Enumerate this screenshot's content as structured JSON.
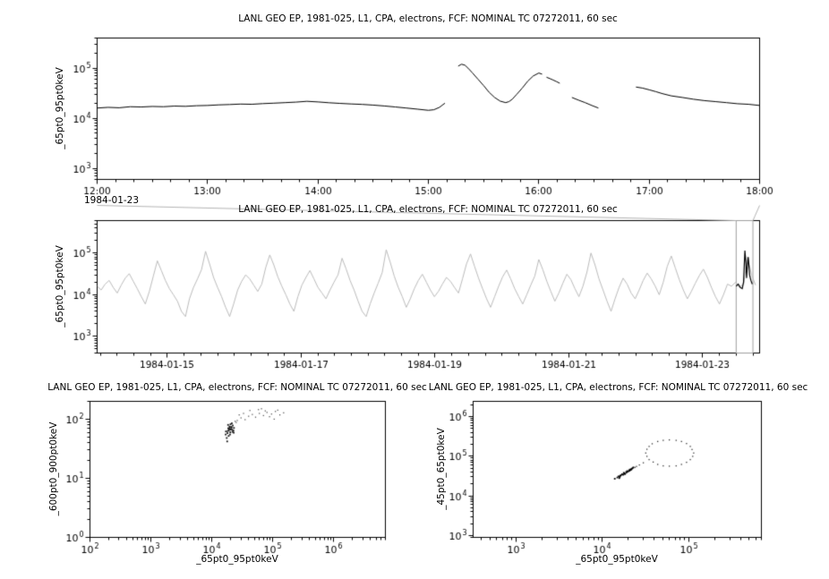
{
  "connector": {
    "color": "#b3b3b3"
  },
  "chart_data": [
    {
      "id": "top-timeseries",
      "type": "line",
      "title": "LANL GEO EP, 1981-025, L1, CPA, electrons, FCF: NOMINAL TC 07272011, 60 sec",
      "ylabel": "_65pt0_95pt0keV",
      "xlabel": "",
      "x_context_label": "1984-01-23",
      "x_axis": {
        "log": false,
        "min": 12,
        "max": 18,
        "minor_step": 0.166666,
        "major": [
          {
            "v": 12,
            "label": "12:00"
          },
          {
            "v": 13,
            "label": "13:00"
          },
          {
            "v": 14,
            "label": "14:00"
          },
          {
            "v": 15,
            "label": "15:00"
          },
          {
            "v": 16,
            "label": "16:00"
          },
          {
            "v": 17,
            "label": "17:00"
          },
          {
            "v": 18,
            "label": "18:00"
          }
        ]
      },
      "y_axis": {
        "log": true,
        "min": 600,
        "max": 400000,
        "majors": [
          1000,
          10000,
          100000
        ]
      },
      "series": [
        {
          "name": "_65pt0_95pt0keV",
          "type": "line",
          "color": "#000000",
          "width": 1,
          "segments": [
            {
              "x": [
                12.0,
                12.1,
                12.2,
                12.3,
                12.4,
                12.5,
                12.6,
                12.7,
                12.8,
                12.9,
                13.0,
                13.1,
                13.2,
                13.3,
                13.4,
                13.5,
                13.6,
                13.7,
                13.8,
                13.9,
                14.0,
                14.1,
                14.2,
                14.3,
                14.4,
                14.5,
                14.6,
                14.7,
                14.8,
                14.9,
                15.0,
                15.05,
                15.1,
                15.15
              ],
              "y": [
                16000,
                16500,
                16200,
                17000,
                16800,
                17200,
                17000,
                17500,
                17300,
                17800,
                18000,
                18500,
                18800,
                19200,
                19000,
                19600,
                20000,
                20500,
                21000,
                21800,
                21200,
                20400,
                19800,
                19300,
                18900,
                18300,
                17600,
                16800,
                16000,
                15200,
                14400,
                14800,
                16500,
                20000
              ]
            },
            {
              "x": [
                15.27,
                15.3,
                15.33,
                15.36,
                15.4,
                15.45,
                15.5,
                15.55,
                15.6,
                15.65,
                15.7,
                15.73,
                15.76,
                15.8,
                15.85,
                15.9,
                15.95,
                16.0,
                16.03
              ],
              "y": [
                110000,
                120000,
                115000,
                100000,
                80000,
                60000,
                45000,
                33000,
                26000,
                22000,
                20500,
                21500,
                24000,
                30000,
                40000,
                55000,
                70000,
                80000,
                76000
              ]
            },
            {
              "x": [
                16.07,
                16.1,
                16.13,
                16.16,
                16.19
              ],
              "y": [
                66000,
                62000,
                58000,
                54000,
                50000
              ]
            },
            {
              "x": [
                16.3,
                16.36,
                16.42,
                16.48,
                16.54
              ],
              "y": [
                26000,
                23000,
                20500,
                18000,
                16000
              ]
            },
            {
              "x": [
                16.88,
                16.94,
                17.0,
                17.06,
                17.12,
                17.2,
                17.3,
                17.4,
                17.5,
                17.6,
                17.7,
                17.8,
                17.9,
                18.0
              ],
              "y": [
                42000,
                40000,
                37000,
                34000,
                31000,
                28000,
                26000,
                24000,
                22500,
                21500,
                20500,
                19500,
                19000,
                18000
              ]
            }
          ]
        }
      ]
    },
    {
      "id": "context-timeseries",
      "type": "line",
      "title": "LANL GEO EP, 1981-025, L1, CPA, electrons, FCF: NOMINAL TC 07272011, 60 sec",
      "ylabel": "_65pt0_95pt0keV",
      "xlabel": "",
      "x_axis": {
        "log": false,
        "min": 13.95,
        "max": 23.85,
        "minor_step": 0.25,
        "major": [
          {
            "v": 15,
            "label": "1984-01-15"
          },
          {
            "v": 17,
            "label": "1984-01-17"
          },
          {
            "v": 19,
            "label": "1984-01-19"
          },
          {
            "v": 21,
            "label": "1984-01-21"
          },
          {
            "v": 23,
            "label": "1984-01-23"
          }
        ]
      },
      "y_axis": {
        "log": true,
        "min": 400,
        "max": 600000,
        "majors": [
          1000,
          10000,
          100000
        ]
      },
      "highlight": {
        "x0": 23.5,
        "x1": 23.75,
        "color": "#9e9e9e"
      },
      "series": [
        {
          "name": "_65pt0_95pt0keV (context)",
          "type": "line",
          "color": "#bbbbbb",
          "width": 1,
          "x_start": 13.95,
          "x_step": 0.06,
          "y_scale": 1000,
          "y": [
            16,
            13,
            18,
            22,
            15,
            11,
            17,
            25,
            32,
            21,
            14,
            9,
            6,
            12,
            28,
            65,
            38,
            22,
            14,
            10,
            7,
            4,
            3,
            8,
            15,
            24,
            40,
            110,
            55,
            26,
            15,
            9,
            5,
            3,
            6,
            13,
            21,
            30,
            24,
            17,
            12,
            18,
            45,
            90,
            52,
            27,
            16,
            10,
            6,
            4,
            9,
            17,
            26,
            38,
            24,
            15,
            11,
            8,
            13,
            20,
            30,
            75,
            42,
            22,
            13,
            7,
            4,
            3,
            6,
            11,
            19,
            34,
            120,
            60,
            28,
            15,
            9,
            5,
            8,
            14,
            22,
            31,
            20,
            13,
            9,
            12,
            18,
            26,
            21,
            15,
            11,
            24,
            55,
            95,
            48,
            25,
            14,
            8,
            5,
            9,
            16,
            27,
            39,
            24,
            14,
            9,
            6,
            10,
            17,
            28,
            70,
            40,
            21,
            12,
            7,
            11,
            19,
            31,
            23,
            14,
            9,
            16,
            35,
            100,
            52,
            24,
            13,
            7,
            4,
            8,
            15,
            25,
            18,
            11,
            8,
            13,
            22,
            33,
            24,
            16,
            10,
            20,
            48,
            85,
            44,
            23,
            13,
            8,
            12,
            19,
            29,
            41,
            26,
            15,
            9,
            6,
            10,
            18,
            16,
            20,
            15,
            18,
            80,
            30,
            17
          ]
        },
        {
          "name": "highlighted interval",
          "type": "line",
          "color": "#000000",
          "width": 1.2,
          "y_scale": 1000,
          "x": [
            23.5,
            23.53,
            23.56,
            23.59,
            23.61,
            23.63,
            23.645,
            23.655,
            23.665,
            23.68,
            23.7,
            23.72,
            23.74
          ],
          "y": [
            16,
            18,
            15,
            14,
            20,
            115,
            60,
            25,
            45,
            80,
            30,
            22,
            18
          ]
        }
      ]
    },
    {
      "id": "scatter-600-900",
      "type": "scatter",
      "title": "LANL GEO EP, 1981-025, L1, CPA, electrons, FCF: NOMINAL TC 07272011, 60 sec",
      "xlabel": "_65pt0_95pt0keV",
      "ylabel": "_600pt0_900pt0keV",
      "x_axis": {
        "log": true,
        "min": 100,
        "max": 7000000,
        "majors": [
          100,
          1000,
          10000,
          100000,
          1000000
        ]
      },
      "y_axis": {
        "log": true,
        "min": 1,
        "max": 200,
        "majors": [
          1,
          10,
          100
        ]
      },
      "series": [
        {
          "name": "dense cluster",
          "type": "scatter",
          "color": "#111111",
          "size": 1.8,
          "points": [
            [
              17000,
              62
            ],
            [
              18000,
              58
            ],
            [
              18500,
              70
            ],
            [
              19000,
              65
            ],
            [
              19500,
              75
            ],
            [
              20000,
              60
            ],
            [
              20500,
              68
            ],
            [
              21000,
              72
            ],
            [
              21500,
              66
            ],
            [
              22000,
              78
            ],
            [
              22500,
              64
            ],
            [
              23000,
              71
            ],
            [
              19800,
              55
            ],
            [
              20200,
              82
            ],
            [
              18200,
              63
            ],
            [
              19200,
              69
            ],
            [
              20800,
              74
            ],
            [
              21800,
              61
            ],
            [
              17500,
              48
            ],
            [
              18800,
              52
            ],
            [
              21200,
              85
            ],
            [
              22800,
              59
            ],
            [
              20100,
              67
            ],
            [
              19600,
              73
            ],
            [
              18400,
              80
            ],
            [
              17800,
              42
            ],
            [
              16800,
              55
            ]
          ]
        },
        {
          "name": "sparse points",
          "type": "scatter",
          "color": "#444444",
          "size": 1.2,
          "points": [
            [
              26000,
              95
            ],
            [
              30000,
              105
            ],
            [
              35000,
              98
            ],
            [
              40000,
              112
            ],
            [
              46000,
              120
            ],
            [
              52000,
              108
            ],
            [
              60000,
              125
            ],
            [
              70000,
              115
            ],
            [
              80000,
              130
            ],
            [
              95000,
              122
            ],
            [
              110000,
              135
            ],
            [
              130000,
              118
            ],
            [
              150000,
              128
            ],
            [
              42000,
              140
            ],
            [
              58000,
              145
            ],
            [
              33000,
              125
            ],
            [
              75000,
              138
            ],
            [
              88000,
              110
            ],
            [
              25000,
              88
            ],
            [
              28000,
              118
            ],
            [
              24000,
              92
            ],
            [
              105000,
              100
            ],
            [
              120000,
              142
            ],
            [
              65000,
              150
            ]
          ]
        }
      ]
    },
    {
      "id": "scatter-45-65",
      "type": "scatter",
      "title": "LANL GEO EP, 1981-025, L1, CPA, electrons, FCF: NOMINAL TC 07272011, 60 sec",
      "xlabel": "_65pt0_95pt0keV",
      "ylabel": "_45pt0_65pt0keV",
      "x_axis": {
        "log": true,
        "min": 320,
        "max": 700000,
        "majors": [
          1000,
          10000,
          100000
        ]
      },
      "y_axis": {
        "log": true,
        "min": 900,
        "max": 2400000,
        "majors": [
          1000,
          10000,
          100000,
          1000000
        ]
      },
      "series": [
        {
          "name": "dense cluster",
          "type": "scatter",
          "color": "#000000",
          "size": 1.8,
          "points": [
            [
              14000,
              27000
            ],
            [
              15000,
              29000
            ],
            [
              15500,
              31000
            ],
            [
              16000,
              30000
            ],
            [
              16500,
              33000
            ],
            [
              17000,
              35000
            ],
            [
              17500,
              34000
            ],
            [
              18000,
              37000
            ],
            [
              18500,
              36000
            ],
            [
              19000,
              40000
            ],
            [
              19500,
              42000
            ],
            [
              20000,
              41000
            ],
            [
              20500,
              44000
            ],
            [
              21000,
              46000
            ],
            [
              21500,
              45000
            ],
            [
              22000,
              48000
            ],
            [
              22500,
              50000
            ],
            [
              23000,
              52000
            ],
            [
              16200,
              32000
            ],
            [
              17800,
              38000
            ],
            [
              19200,
              39000
            ],
            [
              20800,
              43000
            ],
            [
              15800,
              28000
            ],
            [
              21800,
              47000
            ],
            [
              18200,
              35500
            ]
          ]
        },
        {
          "name": "loop trace",
          "type": "scatter",
          "color": "#333333",
          "size": 1.3,
          "points": [
            [
              115000,
              120000
            ],
            [
              105000,
              176000
            ],
            [
              83000,
              234000
            ],
            [
              60000,
              257000
            ],
            [
              44000,
              234000
            ],
            [
              35000,
              176000
            ],
            [
              32000,
              120000
            ],
            [
              35000,
              82000
            ],
            [
              44000,
              62000
            ],
            [
              60000,
              56000
            ],
            [
              83000,
              62000
            ],
            [
              105000,
              82000
            ],
            [
              112000,
              99000
            ],
            [
              110000,
              147000
            ],
            [
              95000,
              208000
            ],
            [
              72000,
              250000
            ],
            [
              51000,
              250000
            ],
            [
              38000,
              205000
            ],
            [
              33000,
              149000
            ],
            [
              33000,
              99000
            ],
            [
              39000,
              71000
            ],
            [
              51000,
              57000
            ],
            [
              72000,
              57000
            ],
            [
              95000,
              70000
            ],
            [
              25000,
              55000
            ],
            [
              27000,
              60000
            ],
            [
              30000,
              68000
            ],
            [
              24000,
              52000
            ]
          ]
        }
      ]
    }
  ]
}
